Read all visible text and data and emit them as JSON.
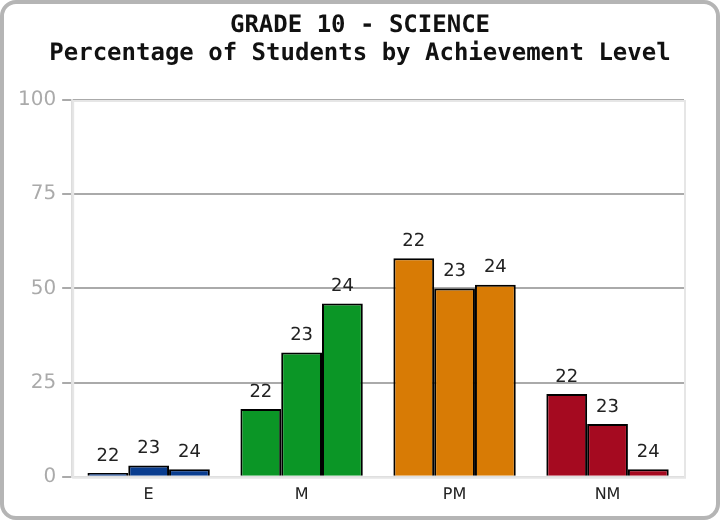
{
  "chart_data": {
    "type": "bar",
    "title": "GRADE 10 - SCIENCE",
    "subtitle": "Percentage of Students by Achievement Level",
    "categories": [
      "E",
      "M",
      "PM",
      "NM"
    ],
    "series": [
      {
        "name": "22",
        "colors": [
          "#0a3d8f",
          "#0b9626",
          "#d87b05",
          "#a50a20"
        ],
        "values": [
          1,
          18,
          58,
          22
        ]
      },
      {
        "name": "23",
        "colors": [
          "#0a3d8f",
          "#0b9626",
          "#d87b05",
          "#a50a20"
        ],
        "values": [
          3,
          33,
          50,
          14
        ]
      },
      {
        "name": "24",
        "colors": [
          "#0a3d8f",
          "#0b9626",
          "#d87b05",
          "#a50a20"
        ],
        "values": [
          2,
          46,
          51,
          2
        ]
      }
    ],
    "ylim": [
      0,
      100
    ],
    "yticks": [
      0,
      25,
      50,
      75,
      100
    ],
    "grid": "y",
    "legend": false
  }
}
